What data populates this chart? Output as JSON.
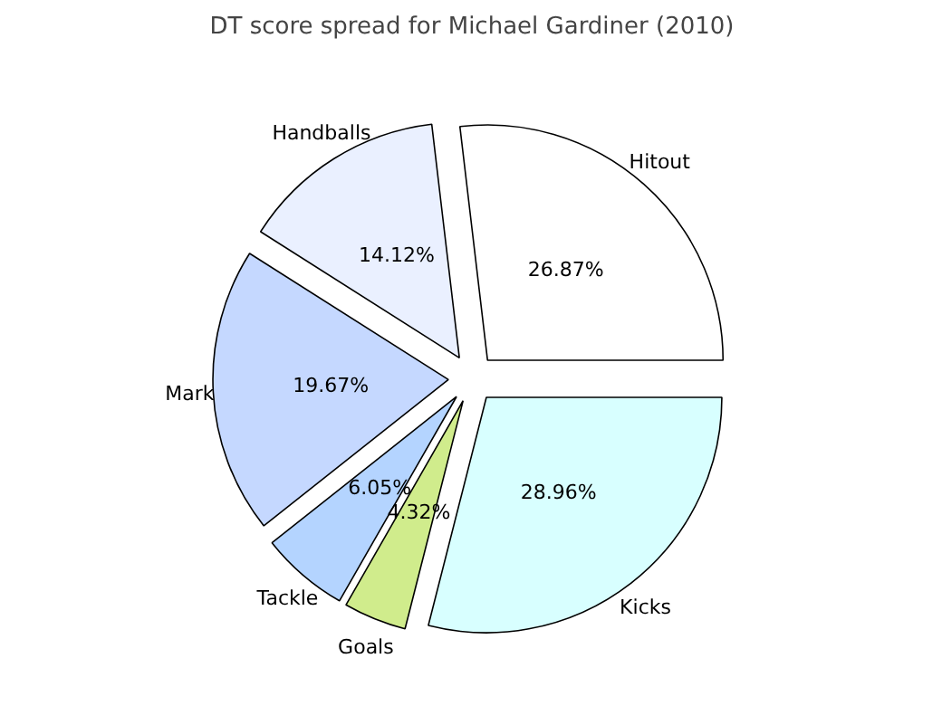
{
  "chart_data": {
    "type": "pie",
    "title": "DT score spread for Michael Gardiner (2010)",
    "categories": [
      "Hitout",
      "Handballs",
      "Mark",
      "Tackle",
      "Goals",
      "Kicks"
    ],
    "values": [
      26.87,
      14.12,
      19.67,
      6.05,
      4.32,
      28.96
    ],
    "value_labels": [
      "26.87%",
      "14.12%",
      "19.67%",
      "6.05%",
      "4.32%",
      "28.96%"
    ],
    "colors": [
      "#ffffff",
      "#eaf0ff",
      "#c5d8ff",
      "#b4d4ff",
      "#d0ec8c",
      "#d8ffff"
    ]
  }
}
